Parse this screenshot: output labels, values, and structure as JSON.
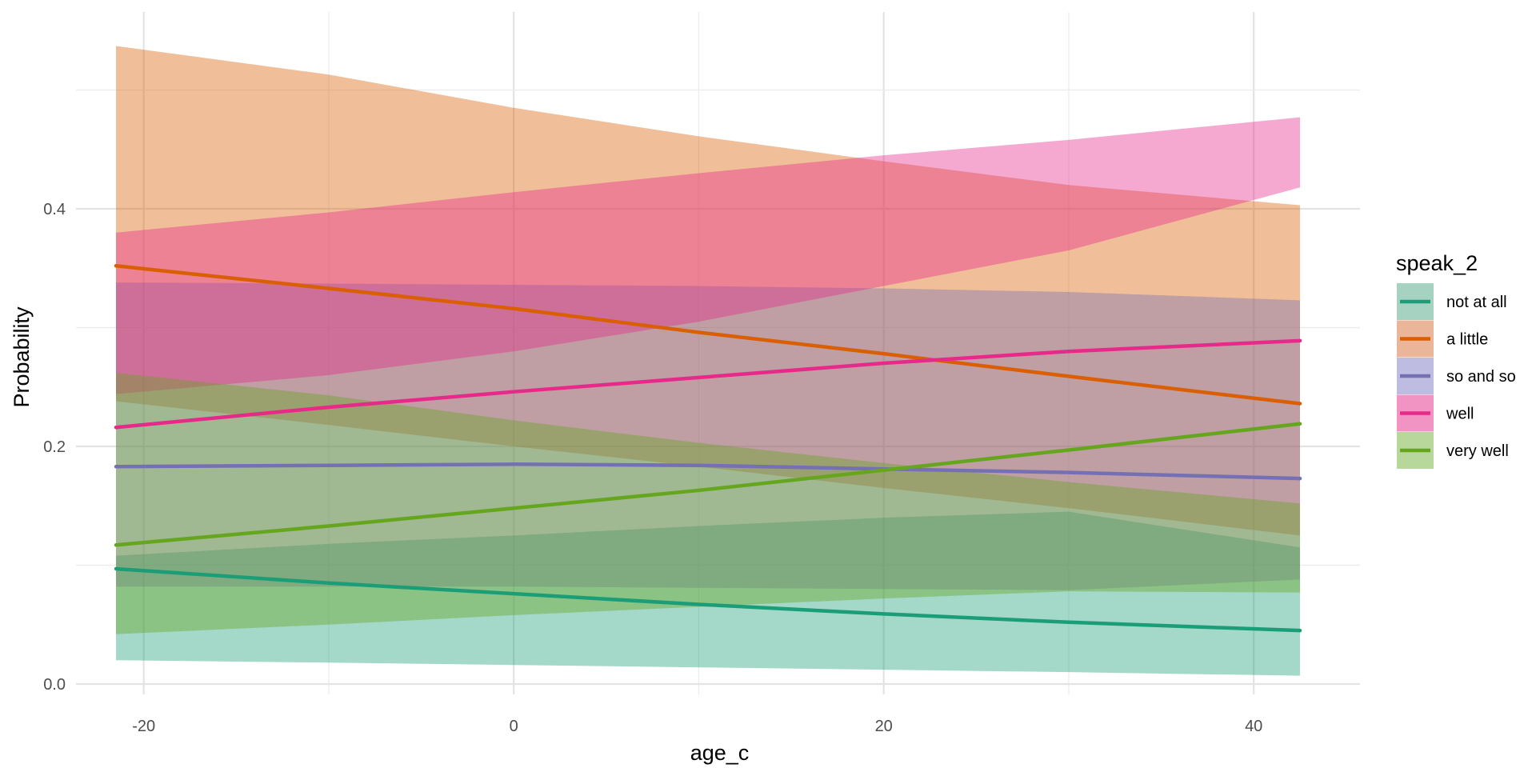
{
  "chart_data": {
    "type": "line",
    "xlabel": "age_c",
    "ylabel": "Probability",
    "xlim": [
      -24.4,
      45.9
    ],
    "ylim": [
      0,
      0.55
    ],
    "x_ticks": [
      -20,
      0,
      20,
      40
    ],
    "x_tick_labels": [
      "-20",
      "0",
      "20",
      "40"
    ],
    "y_ticks": [
      0.0,
      0.2,
      0.4
    ],
    "y_tick_labels": [
      "0.0",
      "0.2",
      "0.4"
    ],
    "grid": true,
    "legend": {
      "title": "speak_2",
      "position": "right"
    },
    "x": [
      -21.5,
      -10,
      0,
      10,
      20,
      30,
      42.5
    ],
    "series": [
      {
        "name": "not at all",
        "color": "#1b9e77",
        "fill": "#a6d2c1",
        "values": [
          0.097,
          0.085,
          0.076,
          0.067,
          0.059,
          0.052,
          0.045
        ],
        "lower": [
          0.02,
          0.018,
          0.016,
          0.014,
          0.012,
          0.01,
          0.007
        ],
        "upper": [
          0.108,
          0.118,
          0.125,
          0.133,
          0.14,
          0.145,
          0.115
        ]
      },
      {
        "name": "a little",
        "color": "#d95f02",
        "fill": "#ebb599",
        "values": [
          0.352,
          0.333,
          0.316,
          0.296,
          0.278,
          0.259,
          0.236
        ],
        "lower": [
          0.238,
          0.218,
          0.2,
          0.183,
          0.165,
          0.148,
          0.125
        ],
        "upper": [
          0.537,
          0.513,
          0.485,
          0.461,
          0.44,
          0.42,
          0.403
        ]
      },
      {
        "name": "so and so",
        "color": "#7570b3",
        "fill": "#bebce0",
        "values": [
          0.183,
          0.184,
          0.185,
          0.184,
          0.181,
          0.178,
          0.173
        ],
        "lower": [
          0.082,
          0.082,
          0.082,
          0.081,
          0.08,
          0.079,
          0.088
        ],
        "upper": [
          0.338,
          0.337,
          0.336,
          0.335,
          0.333,
          0.33,
          0.323
        ]
      },
      {
        "name": "well",
        "color": "#e7298a",
        "fill": "#f294c3",
        "values": [
          0.216,
          0.233,
          0.246,
          0.258,
          0.27,
          0.28,
          0.289
        ],
        "lower": [
          0.244,
          0.26,
          0.28,
          0.305,
          0.335,
          0.365,
          0.418
        ],
        "upper": [
          0.38,
          0.397,
          0.414,
          0.43,
          0.445,
          0.458,
          0.477
        ]
      },
      {
        "name": "very well",
        "color": "#66a61e",
        "fill": "#b8d79a",
        "values": [
          0.117,
          0.133,
          0.148,
          0.163,
          0.18,
          0.197,
          0.219
        ],
        "lower": [
          0.042,
          0.05,
          0.058,
          0.065,
          0.072,
          0.078,
          0.077
        ],
        "upper": [
          0.262,
          0.243,
          0.222,
          0.203,
          0.186,
          0.17,
          0.152
        ]
      }
    ]
  }
}
